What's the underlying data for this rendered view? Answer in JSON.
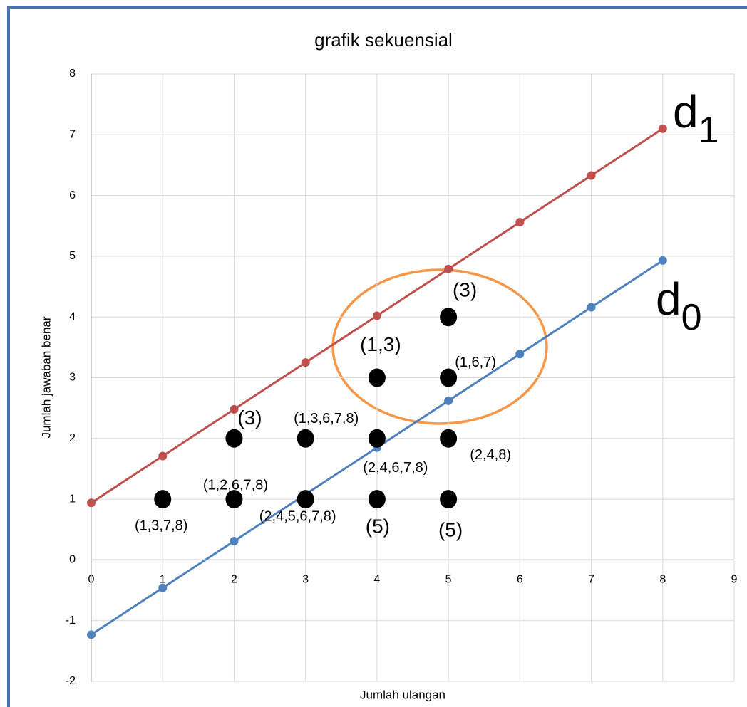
{
  "chart_data": {
    "type": "line",
    "title": "grafik sekuensial",
    "x_label": "Jumlah ulangan",
    "y_label": "Jumlah jawaban benar",
    "x": [
      0,
      1,
      2,
      3,
      4,
      5,
      6,
      7,
      8
    ],
    "series": [
      {
        "color": "#c0504d",
        "values": [
          0.94,
          1.71,
          2.48,
          3.25,
          4.02,
          4.79,
          5.56,
          6.33,
          7.1
        ]
      },
      {
        "color": "#4f81bd",
        "values": [
          -1.23,
          -0.46,
          0.31,
          1.08,
          1.85,
          2.62,
          3.39,
          4.16,
          4.93
        ]
      }
    ],
    "points": {
      "color": "#000000",
      "x": [
        1,
        2,
        3,
        4,
        5,
        2,
        3,
        4,
        5,
        4,
        5,
        5
      ],
      "y": [
        1,
        1,
        1,
        1,
        1,
        2,
        2,
        2,
        2,
        3,
        3,
        4
      ],
      "labels": [
        "(1,3,7,8)",
        "(1,2,6,7,8)",
        "(2,4,5,6,7,8)",
        "(5)",
        "(5)",
        "(3)",
        "(1,3,6,7,8)",
        "(2,4,6,7,8)",
        "(2,4,8)",
        "(1,3)",
        "(1,6,7)",
        "(3)"
      ]
    },
    "annotations": [
      {
        "text": "d",
        "subscript": "1"
      },
      {
        "text": "d",
        "subscript": "0"
      }
    ],
    "xlim": [
      0,
      9
    ],
    "xticks": [
      0,
      1,
      2,
      3,
      4,
      5,
      6,
      7,
      8,
      9
    ],
    "ylim": [
      -2,
      8
    ],
    "yticks": [
      -2,
      -1,
      0,
      1,
      2,
      3,
      4,
      5,
      6,
      7,
      8
    ],
    "grid": true
  }
}
